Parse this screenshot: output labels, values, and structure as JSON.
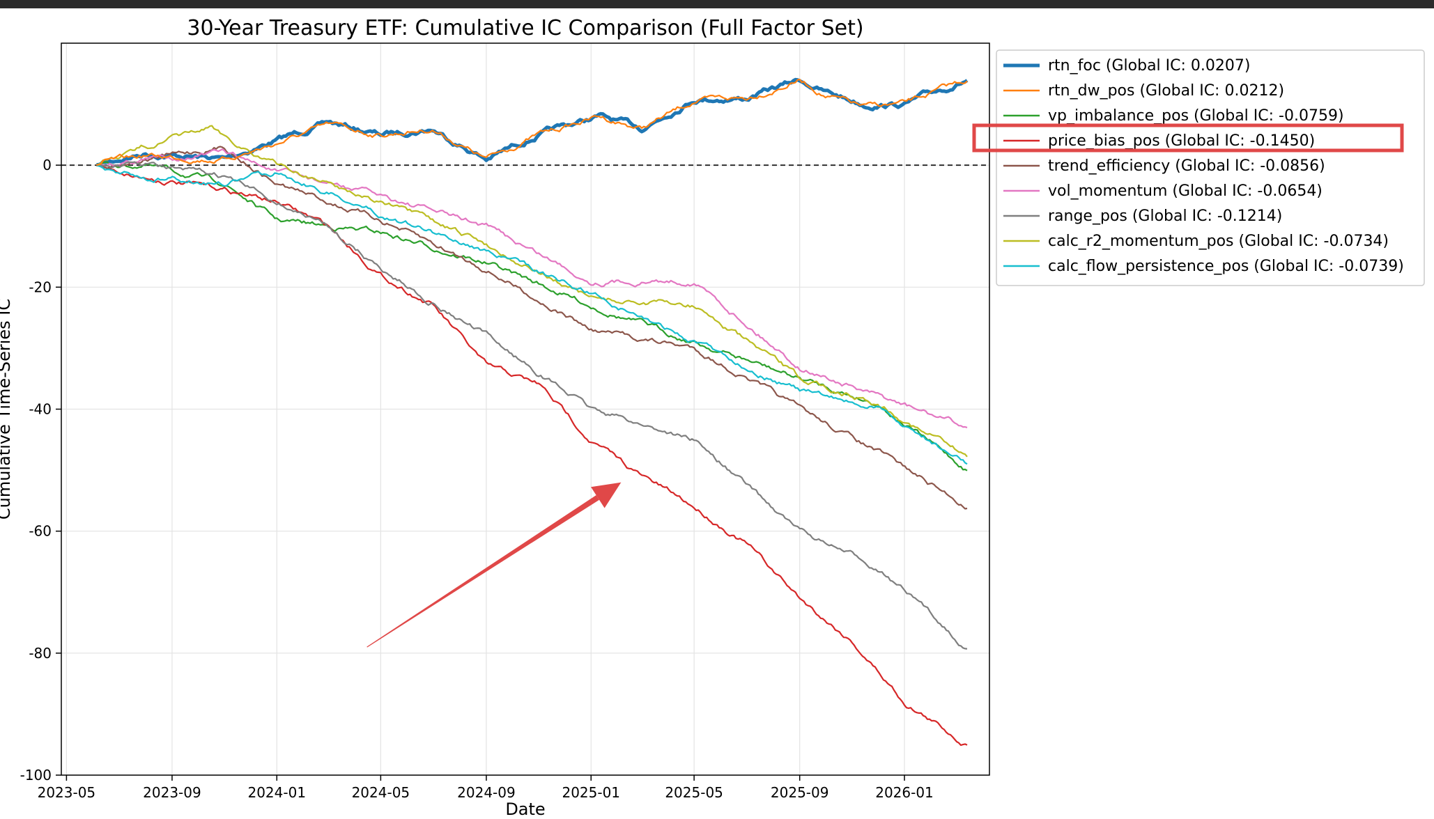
{
  "chart_data": {
    "type": "line",
    "title": "30-Year Treasury ETF: Cumulative IC Comparison (Full Factor Set)",
    "xlabel": "Date",
    "ylabel": "Cumulative Time-Series IC",
    "x_ticks": [
      "2023-05",
      "2023-09",
      "2024-01",
      "2024-05",
      "2024-09",
      "2025-01",
      "2025-05",
      "2025-09",
      "2026-01"
    ],
    "y_ticks": [
      0,
      -20,
      -40,
      -60,
      -80,
      -100
    ],
    "ylim": [
      -100,
      20
    ],
    "xlim": [
      "2023-04-25",
      "2026-04-10"
    ],
    "grid": true,
    "zero_line": "dashed",
    "legend_position": "outside-upper-right",
    "series": [
      {
        "name": "rtn_foc (Global IC: 0.0207)",
        "color": "#1f77b4",
        "bold": true,
        "x": [
          "2023-06-05",
          "2023-08-01",
          "2023-11-01",
          "2023-12-30",
          "2024-03-01",
          "2024-05-01",
          "2024-06-30",
          "2024-09-01",
          "2024-11-01",
          "2025-01-10",
          "2025-03-01",
          "2025-05-01",
          "2025-07-01",
          "2025-09-01",
          "2025-10-01",
          "2025-11-15",
          "2026-01-01",
          "2026-03-15"
        ],
        "values": [
          0,
          2,
          1,
          4,
          7,
          5,
          6,
          1,
          5,
          8,
          6,
          11,
          11,
          14,
          12,
          10,
          10,
          14
        ]
      },
      {
        "name": "rtn_dw_pos (Global IC: 0.0212)",
        "color": "#ff7f0e",
        "x": [
          "2023-06-05",
          "2023-08-01",
          "2023-11-01",
          "2023-12-30",
          "2024-03-01",
          "2024-05-01",
          "2024-06-30",
          "2024-09-01",
          "2024-11-01",
          "2025-01-10",
          "2025-03-01",
          "2025-05-01",
          "2025-07-01",
          "2025-09-01",
          "2025-10-01",
          "2025-11-15",
          "2026-01-01",
          "2026-03-15"
        ],
        "values": [
          0,
          1.5,
          1,
          3.5,
          6.5,
          5,
          6,
          1,
          5,
          8,
          6,
          10.5,
          11,
          14,
          11.5,
          9.5,
          10,
          14
        ]
      },
      {
        "name": "vp_imbalance_pos (Global IC: -0.0759)",
        "color": "#2ca02c",
        "x": [
          "2023-06-05",
          "2023-08-01",
          "2023-11-01",
          "2024-01-01",
          "2024-05-01",
          "2024-09-01",
          "2025-01-01",
          "2025-05-01",
          "2025-09-01",
          "2025-12-01",
          "2026-03-15"
        ],
        "values": [
          0,
          0,
          -3,
          -9,
          -11,
          -16,
          -23,
          -29,
          -35,
          -39,
          -50
        ]
      },
      {
        "name": "price_bias_pos (Global IC: -0.1450)",
        "color": "#d62728",
        "x": [
          "2023-06-05",
          "2023-08-01",
          "2023-11-01",
          "2024-01-01",
          "2024-03-01",
          "2024-05-01",
          "2024-07-01",
          "2024-09-01",
          "2024-11-01",
          "2025-01-01",
          "2025-03-01",
          "2025-05-01",
          "2025-07-01",
          "2025-09-01",
          "2025-11-01",
          "2026-01-01",
          "2026-03-15"
        ],
        "values": [
          0,
          -2,
          -4,
          -6,
          -10,
          -18,
          -23,
          -33,
          -36,
          -45,
          -51,
          -56,
          -62,
          -71,
          -78,
          -88,
          -95
        ]
      },
      {
        "name": "trend_efficiency (Global IC: -0.0856)",
        "color": "#8c564b",
        "x": [
          "2023-06-05",
          "2023-08-01",
          "2023-11-01",
          "2024-01-01",
          "2024-05-01",
          "2024-09-01",
          "2025-01-01",
          "2025-05-01",
          "2025-09-01",
          "2025-12-01",
          "2026-03-15"
        ],
        "values": [
          0,
          1,
          3,
          -3,
          -9,
          -17,
          -27,
          -30,
          -40,
          -47,
          -56
        ]
      },
      {
        "name": "vol_momentum (Global IC: -0.0654)",
        "color": "#e377c2",
        "x": [
          "2023-06-05",
          "2023-08-01",
          "2023-11-01",
          "2024-01-01",
          "2024-05-01",
          "2024-09-01",
          "2025-01-01",
          "2025-05-01",
          "2025-09-01",
          "2025-12-01",
          "2026-03-15"
        ],
        "values": [
          0,
          1,
          2,
          -1,
          -5,
          -10,
          -19,
          -19,
          -33,
          -38,
          -43
        ]
      },
      {
        "name": "range_pos (Global IC: -0.1214)",
        "color": "#7f7f7f",
        "x": [
          "2023-06-05",
          "2023-08-01",
          "2023-11-01",
          "2024-01-01",
          "2024-03-01",
          "2024-05-01",
          "2024-09-01",
          "2025-01-01",
          "2025-05-01",
          "2025-09-01",
          "2025-12-01",
          "2026-03-15"
        ],
        "values": [
          0,
          0,
          -2,
          -6,
          -10,
          -17,
          -28,
          -40,
          -45,
          -60,
          -66,
          -79
        ]
      },
      {
        "name": "calc_r2_momentum_pos (Global IC: -0.0734)",
        "color": "#bcbd22",
        "x": [
          "2023-06-05",
          "2023-08-01",
          "2023-10-15",
          "2024-01-01",
          "2024-05-01",
          "2024-09-01",
          "2025-01-01",
          "2025-05-01",
          "2025-09-01",
          "2025-12-01",
          "2026-03-15"
        ],
        "values": [
          0,
          3,
          6,
          0,
          -6,
          -13,
          -22,
          -23,
          -35,
          -39,
          -48
        ]
      },
      {
        "name": "calc_flow_persistence_pos (Global IC: -0.0739)",
        "color": "#17becf",
        "x": [
          "2023-06-05",
          "2023-08-01",
          "2023-11-01",
          "2024-01-01",
          "2024-05-01",
          "2024-09-01",
          "2025-01-01",
          "2025-05-01",
          "2025-09-01",
          "2025-12-01",
          "2026-03-15"
        ],
        "values": [
          0,
          -2,
          -3,
          -1,
          -8,
          -14,
          -21,
          -29,
          -37,
          -40,
          -49
        ]
      }
    ]
  },
  "annotations": {
    "highlight_color": "#e04848",
    "highlighted_legend_entry": "price_bias_pos (Global IC: -0.1450)",
    "arrow_from": {
      "date": "2024-04-15",
      "value": -79
    },
    "arrow_to": {
      "date": "2025-02-05",
      "value": -52
    }
  }
}
